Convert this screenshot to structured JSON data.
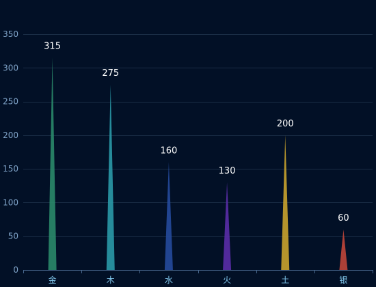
{
  "chart_data": {
    "type": "bar",
    "bar_shape": "spike",
    "categories": [
      "金",
      "木",
      "水",
      "火",
      "土",
      "银"
    ],
    "values": [
      315,
      275,
      160,
      130,
      200,
      60
    ],
    "colors": [
      "#2a8a6a",
      "#2a9aa8",
      "#254a9c",
      "#5a2ea8",
      "#c9a32e",
      "#c0463a"
    ],
    "ylim": [
      0,
      350
    ],
    "yticks": [
      0,
      50,
      100,
      150,
      200,
      250,
      300,
      350
    ],
    "grid": true,
    "data_labels": true
  }
}
